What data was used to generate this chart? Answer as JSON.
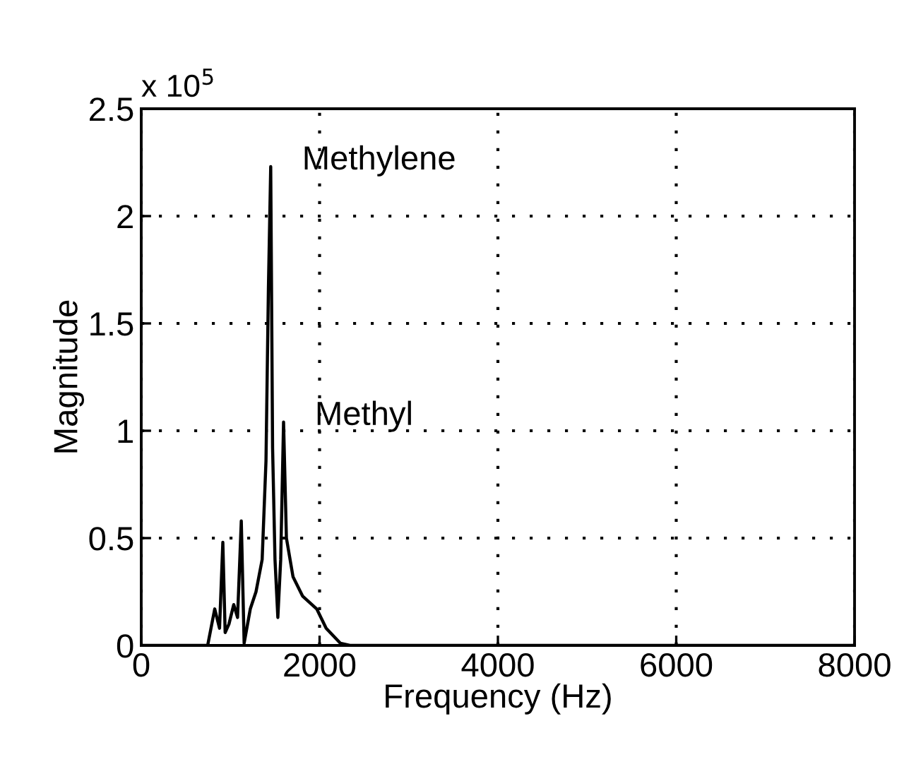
{
  "chart_data": {
    "type": "line",
    "xlabel": "Frequency (Hz)",
    "ylabel": "Magnitude",
    "x": [
      0,
      745,
      824,
      878,
      915,
      941,
      984,
      1037,
      1080,
      1122,
      1154,
      1223,
      1287,
      1356,
      1399,
      1426,
      1452,
      1473,
      1500,
      1532,
      1564,
      1596,
      1628,
      1702,
      1809,
      1968,
      2074,
      2234,
      2340,
      8000
    ],
    "series": [
      {
        "color": "#000000",
        "values": [
          0,
          0,
          0.17,
          0.08,
          0.48,
          0.06,
          0.1,
          0.19,
          0.13,
          0.58,
          0.01,
          0.17,
          0.25,
          0.4,
          0.86,
          1.66,
          2.23,
          0.92,
          0.4,
          0.13,
          0.4,
          1.04,
          0.5,
          0.32,
          0.23,
          0.17,
          0.08,
          0.01,
          0,
          0
        ]
      }
    ],
    "xlim": [
      0,
      8000
    ],
    "ylim": [
      0,
      2.5
    ],
    "xticks": [
      0,
      2000,
      4000,
      6000,
      8000
    ],
    "yticks": [
      0,
      0.5,
      1,
      1.5,
      2,
      2.5
    ],
    "grid": true,
    "line_style": "solid",
    "marker": "none",
    "annotations": [
      "x 10$^{5}$",
      {
        "text": "Methylene",
        "x": 1452,
        "y": 2.23
      },
      {
        "text": "Methyl",
        "x": 1596,
        "y": 1.04
      }
    ]
  }
}
